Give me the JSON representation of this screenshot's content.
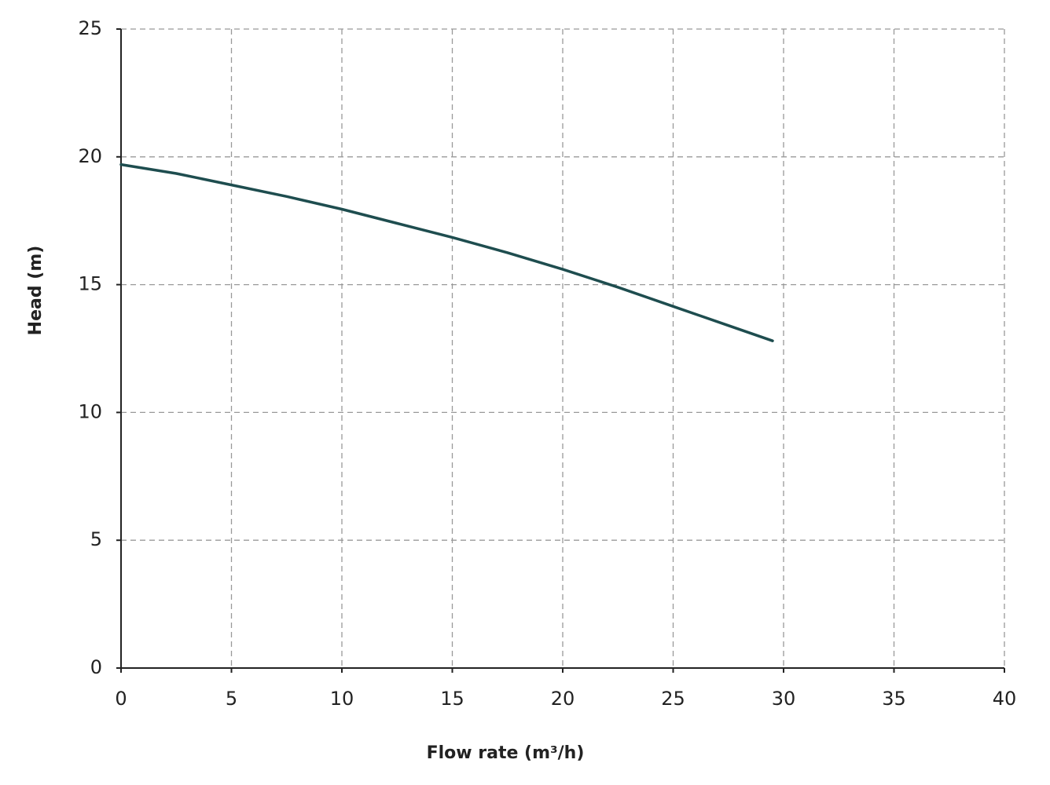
{
  "chart_data": {
    "type": "line",
    "xlabel": "Flow rate (m³/h)",
    "ylabel": "Head (m)",
    "x": [
      0,
      2.5,
      5,
      7.5,
      10,
      12.5,
      15,
      17.5,
      20,
      22.5,
      25,
      27.5,
      29.5
    ],
    "series": [
      {
        "name": "Head",
        "color": "#1e4d4f",
        "values": [
          19.7,
          19.35,
          18.9,
          18.45,
          17.95,
          17.4,
          16.85,
          16.25,
          15.6,
          14.9,
          14.15,
          13.4,
          12.8
        ]
      }
    ],
    "xlim": [
      0,
      40
    ],
    "xticks": [
      0,
      5,
      10,
      15,
      20,
      25,
      30,
      35,
      40
    ],
    "ylim": [
      0,
      25
    ],
    "yticks": [
      0,
      5,
      10,
      15,
      20,
      25
    ],
    "grid": true
  }
}
